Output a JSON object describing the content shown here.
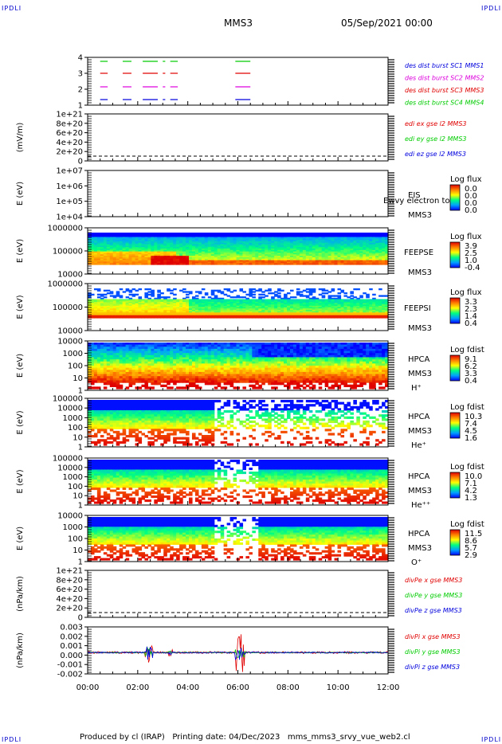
{
  "corners": {
    "tl": "IPDLI",
    "tr": "IPDLI",
    "bl": "IPDLI",
    "br": "IPDLI"
  },
  "header": {
    "title": "MMS3",
    "datetime": "05/Sep/2021 00:00"
  },
  "footer": {
    "text": "Produced by cl (IRAP)   Printing date: 04/Dec/2023   mms_mms3_srvy_vue_web2.cl"
  },
  "colors": {
    "red": "#e00000",
    "green": "#00cc00",
    "blue": "#0000dd",
    "magenta": "#dd00dd"
  },
  "chart_data": {
    "type": "multi-panel spectrogram",
    "x_ticks": [
      "00:00",
      "02:00",
      "04:00",
      "06:00",
      "08:00",
      "10:00",
      "12:00"
    ],
    "x_range_hours": [
      0,
      12
    ],
    "panels": [
      {
        "id": "burst",
        "yticks": [
          "4",
          "3",
          "2",
          "1"
        ],
        "legend": [
          {
            "text": "des dist burst SC1 MMS1",
            "color": "#0000dd"
          },
          {
            "text": "des dist burst SC2 MMS2",
            "color": "#dd00dd"
          },
          {
            "text": "des dist burst SC3 MMS3",
            "color": "#e00000"
          },
          {
            "text": "des dist burst SC4 MMS4",
            "color": "#00cc00"
          }
        ],
        "segments_hours": [
          [
            0.5,
            0.8
          ],
          [
            1.4,
            1.75
          ],
          [
            2.2,
            2.8
          ],
          [
            3.0,
            3.1
          ],
          [
            3.3,
            3.6
          ],
          [
            5.9,
            6.5
          ]
        ]
      },
      {
        "id": "edi",
        "ylabel": "(mV/m)",
        "yticks": [
          "1e+21",
          "8e+20",
          "6e+20",
          "4e+20",
          "2e+20",
          "0"
        ],
        "legend": [
          {
            "text": "edi ex gse l2 MMS3",
            "color": "#e00000"
          },
          {
            "text": "edi ey gse l2 MMS3",
            "color": "#00cc00"
          },
          {
            "text": "edi ez gse l2 MMS3",
            "color": "#0000dd"
          }
        ]
      },
      {
        "id": "eis",
        "ylabel": "E (eV)",
        "yticks": [
          "1e+07",
          "1e+06",
          "1e+05",
          "1e+04"
        ],
        "labels": [
          "EIS",
          "MMS3"
        ],
        "overlay": "Ewvy electron to",
        "cbar_title": "Log flux",
        "cbar_ticks": [
          "0.0",
          "0.0",
          "0.0",
          "0.0"
        ]
      },
      {
        "id": "feeps_e",
        "ylabel": "E (eV)",
        "yticks": [
          "1000000",
          "100000",
          "10000"
        ],
        "labels": [
          "FEEPSE",
          "MMS3"
        ],
        "cbar_title": "Log flux",
        "cbar_ticks": [
          "3.9",
          "2.5",
          "1.0",
          "-0.4"
        ]
      },
      {
        "id": "feeps_i",
        "ylabel": "E (eV)",
        "yticks": [
          "1000000",
          "100000",
          "10000"
        ],
        "labels": [
          "FEEPSI",
          "MMS3"
        ],
        "cbar_title": "Log flux",
        "cbar_ticks": [
          "3.3",
          "2.3",
          "1.4",
          "0.4"
        ]
      },
      {
        "id": "hpca_h",
        "ylabel": "E (eV)",
        "yticks": [
          "10000",
          "1000",
          "100",
          "10",
          "1"
        ],
        "labels": [
          "HPCA",
          "MMS3",
          "H⁺"
        ],
        "cbar_title": "Log fdist",
        "cbar_ticks": [
          "9.1",
          "6.2",
          "3.3",
          "0.4"
        ]
      },
      {
        "id": "hpca_he",
        "ylabel": "E (eV)",
        "yticks": [
          "100000",
          "10000",
          "1000",
          "100",
          "10",
          "1"
        ],
        "labels": [
          "HPCA",
          "MMS3",
          "He⁺"
        ],
        "cbar_title": "Log fdist",
        "cbar_ticks": [
          "10.3",
          "7.4",
          "4.5",
          "1.6"
        ]
      },
      {
        "id": "hpca_hepp",
        "ylabel": "E (eV)",
        "yticks": [
          "100000",
          "10000",
          "1000",
          "100",
          "10",
          "1"
        ],
        "labels": [
          "HPCA",
          "MMS3",
          "He⁺⁺"
        ],
        "cbar_title": "Log fdist",
        "cbar_ticks": [
          "10.0",
          "7.1",
          "4.2",
          "1.3"
        ]
      },
      {
        "id": "hpca_o",
        "ylabel": "E (eV)",
        "yticks": [
          "10000",
          "1000",
          "100",
          "10",
          "1"
        ],
        "labels": [
          "HPCA",
          "MMS3",
          "O⁺"
        ],
        "cbar_title": "Log fdist",
        "cbar_ticks": [
          "11.5",
          "8.6",
          "5.7",
          "2.9"
        ]
      },
      {
        "id": "divpe",
        "ylabel": "(nPa/km)",
        "yticks": [
          "1e+21",
          "8e+20",
          "6e+20",
          "4e+20",
          "2e+20",
          "0"
        ],
        "legend": [
          {
            "text": "divPe x gse MMS3",
            "color": "#e00000"
          },
          {
            "text": "divPe y gse MMS3",
            "color": "#00cc00"
          },
          {
            "text": "divPe z gse MMS3",
            "color": "#0000dd"
          }
        ]
      },
      {
        "id": "divpi",
        "ylabel": "(nPa/km)",
        "yticks": [
          "0.003",
          "0.002",
          "0.001",
          "0.000",
          "-0.001",
          "-0.002"
        ],
        "ylim": [
          -0.0025,
          0.003
        ],
        "legend": [
          {
            "text": "divPi x gse MMS3",
            "color": "#e00000"
          },
          {
            "text": "divPi y gse MMS3",
            "color": "#00cc00"
          },
          {
            "text": "divPi z gse MMS3",
            "color": "#0000dd"
          }
        ]
      }
    ]
  }
}
